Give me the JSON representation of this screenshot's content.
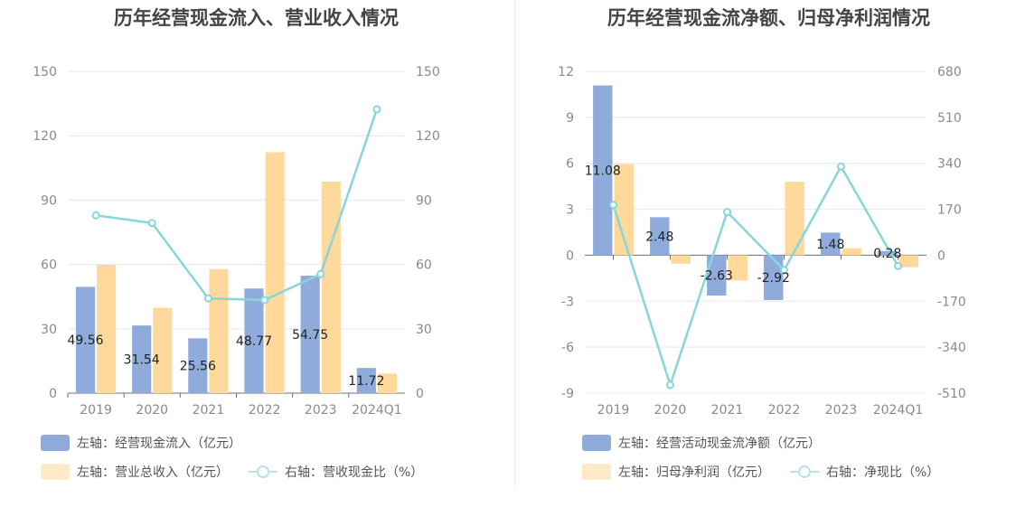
{
  "colors": {
    "blue": "#8eabdb",
    "orange": "#fed99b",
    "cyan": "#87d6db",
    "grid": "#e4e8f2",
    "text": "#8a8a8a"
  },
  "left_chart": {
    "title": "历年经营现金流入、营业收入情况",
    "legend": {
      "bar1": "左轴：经营现金流入（亿元）",
      "bar2": "左轴：营业总收入（亿元）",
      "line": "右轴：营收现金比（%）"
    }
  },
  "right_chart": {
    "title": "历年经营现金流净额、归母净利润情况",
    "legend": {
      "bar1": "左轴：经营活动现金流净额（亿元）",
      "bar2": "左轴：归母净利润（亿元）",
      "line": "右轴：净现比（%）"
    }
  },
  "chart_data": [
    {
      "type": "bar",
      "title": "历年经营现金流入、营业收入情况",
      "categories": [
        "2019",
        "2020",
        "2021",
        "2022",
        "2023",
        "2024Q1"
      ],
      "y_left": {
        "min": 0,
        "max": 150,
        "ticks": [
          "150",
          "120",
          "90",
          "60",
          "30",
          "0"
        ]
      },
      "y_right": {
        "min": 0,
        "max": 150,
        "ticks": [
          "150",
          "120",
          "90",
          "60",
          "30",
          "0"
        ]
      },
      "series": [
        {
          "name": "左轴：经营现金流入（亿元）",
          "axis": "left",
          "kind": "bar",
          "values": [
            49.56,
            31.54,
            25.56,
            48.77,
            54.75,
            11.72
          ],
          "labels": [
            "49.56",
            "31.54",
            "25.56",
            "48.77",
            "54.75",
            "11.72"
          ]
        },
        {
          "name": "左轴：营业总收入（亿元）",
          "axis": "left",
          "kind": "bar",
          "values": [
            59.8,
            39.8,
            57.9,
            112.3,
            98.6,
            9.1
          ]
        },
        {
          "name": "右轴：营收现金比（%）",
          "axis": "right",
          "kind": "line",
          "values": [
            82.9,
            79.3,
            44.2,
            43.4,
            55.5,
            132.3
          ]
        }
      ],
      "grid": true
    },
    {
      "type": "bar",
      "title": "历年经营现金流净额、归母净利润情况",
      "categories": [
        "2019",
        "2020",
        "2021",
        "2022",
        "2023",
        "2024Q1"
      ],
      "y_left": {
        "min": -9,
        "max": 12,
        "ticks": [
          "12",
          "9",
          "6",
          "3",
          "0",
          "-3",
          "-6",
          "-9"
        ]
      },
      "y_right": {
        "min": -510,
        "max": 680,
        "ticks": [
          "680",
          "510",
          "340",
          "170",
          "0",
          "-170",
          "-340",
          "-510"
        ]
      },
      "series": [
        {
          "name": "左轴：经营活动现金流净额（亿元）",
          "axis": "left",
          "kind": "bar",
          "values": [
            11.08,
            2.48,
            -2.63,
            -2.92,
            1.48,
            0.28
          ],
          "labels": [
            "11.08",
            "2.48",
            "-2.63",
            "-2.92",
            "1.48",
            "0.28"
          ]
        },
        {
          "name": "左轴：归母净利润（亿元）",
          "axis": "left",
          "kind": "bar",
          "values": [
            5.95,
            -0.55,
            -1.65,
            4.8,
            0.45,
            -0.78
          ]
        },
        {
          "name": "右轴：净现比（%）",
          "axis": "right",
          "kind": "line",
          "values": [
            186,
            -480,
            160,
            -55,
            328,
            -40
          ]
        }
      ],
      "grid": true
    }
  ]
}
